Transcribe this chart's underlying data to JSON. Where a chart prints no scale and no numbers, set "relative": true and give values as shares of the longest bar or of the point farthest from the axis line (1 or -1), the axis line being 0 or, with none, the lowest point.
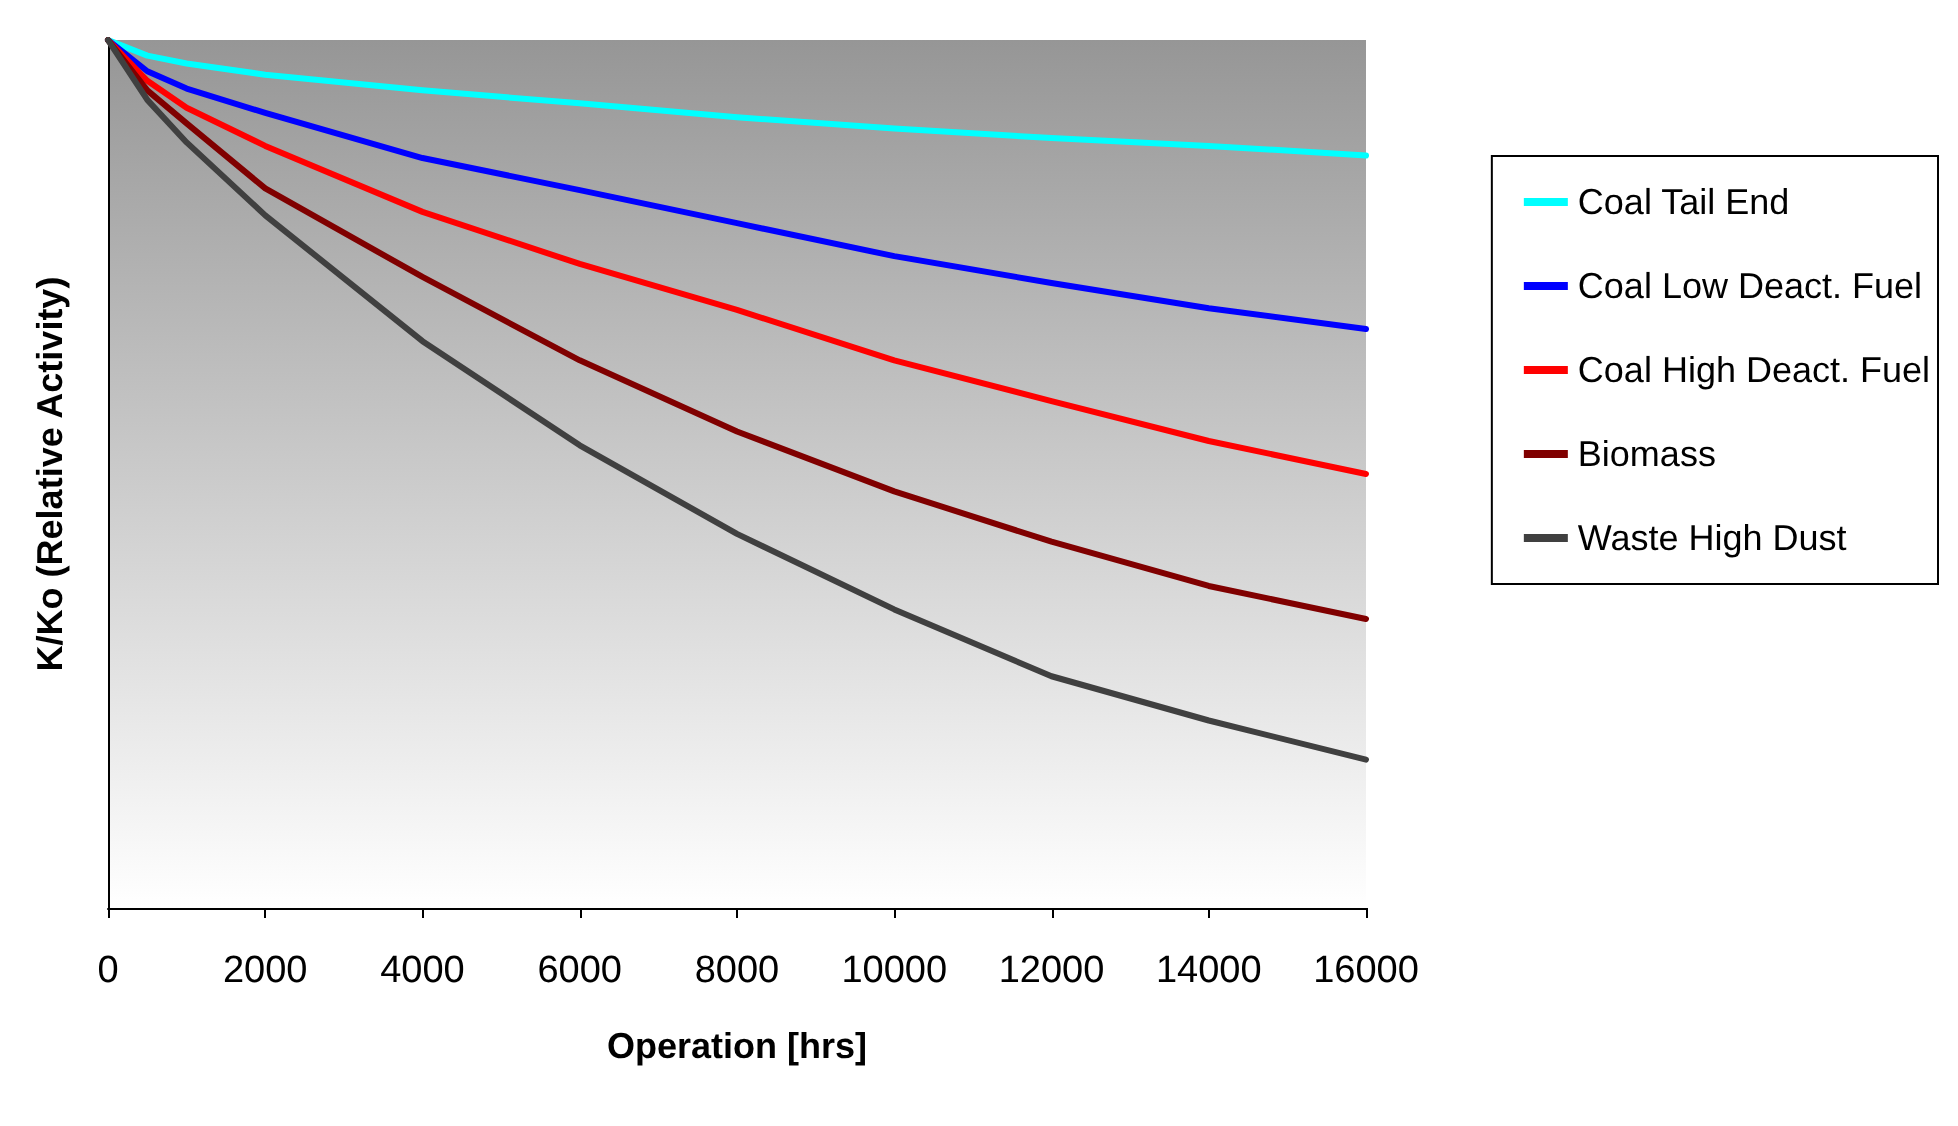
{
  "chart_data": {
    "type": "line",
    "xlabel": "Operation [hrs]",
    "ylabel": "K/Ko (Relative Activity)",
    "relative": true,
    "x": [
      0,
      500,
      1000,
      2000,
      4000,
      6000,
      8000,
      10000,
      12000,
      14000,
      16000
    ],
    "xlim": [
      0,
      16000
    ],
    "xticks": [
      0,
      2000,
      4000,
      6000,
      8000,
      10000,
      12000,
      14000,
      16000
    ],
    "series": [
      {
        "name": "Coal Tail End",
        "color": "#00ffff",
        "values": [
          1,
          0.982,
          0.973,
          0.96,
          0.942,
          0.927,
          0.911,
          0.898,
          0.887,
          0.878,
          0.867
        ]
      },
      {
        "name": "Coal Low Deact. Fuel",
        "color": "#0000ff",
        "values": [
          1,
          0.964,
          0.944,
          0.916,
          0.864,
          0.827,
          0.789,
          0.751,
          0.72,
          0.691,
          0.667
        ]
      },
      {
        "name": "Coal High Deact. Fuel",
        "color": "#ff0000",
        "values": [
          1,
          0.953,
          0.922,
          0.878,
          0.802,
          0.742,
          0.689,
          0.631,
          0.584,
          0.538,
          0.5
        ]
      },
      {
        "name": "Biomass",
        "color": "#800000",
        "values": [
          1,
          0.942,
          0.904,
          0.829,
          0.727,
          0.631,
          0.549,
          0.48,
          0.422,
          0.371,
          0.333
        ]
      },
      {
        "name": "Waste High Dust",
        "color": "#404040",
        "values": [
          1,
          0.931,
          0.882,
          0.798,
          0.653,
          0.533,
          0.431,
          0.344,
          0.267,
          0.216,
          0.171
        ]
      }
    ],
    "legend": "right",
    "grid": false,
    "marker": "none",
    "line_style": "solid"
  }
}
